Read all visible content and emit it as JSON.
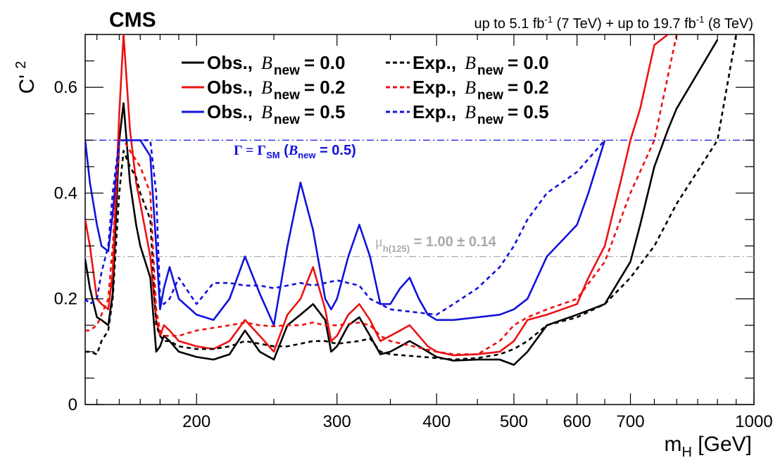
{
  "header": {
    "experiment": "CMS",
    "lumi_a": "up to 5.1 fb",
    "lumi_a_sup": "-1",
    "lumi_a_energy": " (7 TeV) + up to 19.7 fb",
    "lumi_b_sup": "-1",
    "lumi_b_energy": " (8 TeV)"
  },
  "legend": {
    "obs": "Obs.,",
    "exp": "Exp.,",
    "bnew_symbol": "B",
    "bnew_sub": "new",
    "entries": [
      {
        "kind": "obs",
        "value": "= 0.0",
        "color": "#000000"
      },
      {
        "kind": "obs",
        "value": "= 0.2",
        "color": "#ee1111"
      },
      {
        "kind": "obs",
        "value": "= 0.5",
        "color": "#1111dd"
      },
      {
        "kind": "exp",
        "value": "= 0.0",
        "color": "#000000"
      },
      {
        "kind": "exp",
        "value": "= 0.2",
        "color": "#ee1111"
      },
      {
        "kind": "exp",
        "value": "= 0.5",
        "color": "#1111dd"
      }
    ]
  },
  "annotations": {
    "gamma_label_main": "Γ = Γ",
    "gamma_label_sub": "SM",
    "gamma_label_paren_open": " (",
    "gamma_label_b": "B",
    "gamma_label_bsub": "new",
    "gamma_label_tail": " = 0.5)",
    "mu_label_main": "μ",
    "mu_label_sub": "h(125)",
    "mu_label_tail": " = 1.00 ± 0.14"
  },
  "chart_data": {
    "type": "line",
    "xscale": "log",
    "xlim": [
      145,
      1000
    ],
    "ylim": [
      0,
      0.7
    ],
    "xlabel": "m",
    "xlabel_sub": "H",
    "xlabel_unit": " [GeV]",
    "ylabel": "C' ",
    "ylabel_sup": "2",
    "xticks": [
      200,
      300,
      400,
      500,
      600,
      700,
      1000
    ],
    "xtick_labels": [
      "200",
      "300",
      "400",
      "500",
      "600",
      "700",
      "1000"
    ],
    "yticks": [
      0,
      0.2,
      0.4,
      0.6
    ],
    "ytick_labels": [
      "0",
      "0.2",
      "0.4",
      "0.6"
    ],
    "reference_lines": [
      {
        "y": 0.5,
        "color": "#1111dd",
        "style": "dashdot"
      },
      {
        "y": 0.28,
        "color": "#aaaaaa",
        "style": "dashdot"
      }
    ],
    "series": [
      {
        "name": "Obs., B_new = 0.0",
        "color": "#000000",
        "style": "solid",
        "x": [
          145,
          147,
          150,
          152,
          155,
          157,
          160,
          162,
          165,
          168,
          170,
          175,
          178,
          180,
          182,
          185,
          190,
          200,
          210,
          220,
          230,
          240,
          250,
          260,
          270,
          280,
          290,
          295,
          300,
          310,
          320,
          330,
          340,
          350,
          360,
          370,
          380,
          390,
          400,
          420,
          450,
          480,
          500,
          520,
          550,
          600,
          650,
          700,
          720,
          750,
          780,
          800,
          900
        ],
        "y": [
          0.275,
          0.22,
          0.165,
          0.16,
          0.15,
          0.21,
          0.5,
          0.57,
          0.42,
          0.34,
          0.3,
          0.24,
          0.1,
          0.11,
          0.13,
          0.12,
          0.1,
          0.09,
          0.085,
          0.095,
          0.14,
          0.1,
          0.085,
          0.15,
          0.17,
          0.19,
          0.16,
          0.1,
          0.11,
          0.15,
          0.165,
          0.13,
          0.095,
          0.1,
          0.11,
          0.12,
          0.11,
          0.1,
          0.09,
          0.083,
          0.085,
          0.085,
          0.075,
          0.1,
          0.15,
          0.17,
          0.19,
          0.27,
          0.34,
          0.45,
          0.52,
          0.56,
          0.69
        ]
      },
      {
        "name": "Obs., B_new = 0.2",
        "color": "#ee1111",
        "style": "solid",
        "x": [
          145,
          147,
          150,
          152,
          155,
          157,
          160,
          162,
          165,
          168,
          170,
          175,
          178,
          180,
          182,
          185,
          190,
          200,
          210,
          220,
          230,
          240,
          250,
          260,
          270,
          280,
          290,
          295,
          300,
          310,
          320,
          330,
          340,
          350,
          360,
          370,
          380,
          390,
          400,
          420,
          450,
          480,
          500,
          520,
          550,
          600,
          620,
          650,
          680,
          700,
          720,
          750,
          780
        ],
        "y": [
          0.35,
          0.3,
          0.2,
          0.19,
          0.18,
          0.25,
          0.55,
          0.7,
          0.52,
          0.42,
          0.38,
          0.28,
          0.16,
          0.13,
          0.15,
          0.14,
          0.12,
          0.11,
          0.105,
          0.12,
          0.16,
          0.13,
          0.1,
          0.17,
          0.2,
          0.26,
          0.18,
          0.12,
          0.13,
          0.17,
          0.19,
          0.16,
          0.12,
          0.13,
          0.14,
          0.15,
          0.13,
          0.11,
          0.1,
          0.093,
          0.095,
          0.1,
          0.12,
          0.16,
          0.17,
          0.19,
          0.24,
          0.3,
          0.42,
          0.5,
          0.56,
          0.68,
          0.7
        ]
      },
      {
        "name": "Obs., B_new = 0.5",
        "color": "#1111dd",
        "style": "solid",
        "x": [
          145,
          147,
          150,
          152,
          155,
          157,
          160,
          165,
          170,
          175,
          178,
          180,
          182,
          185,
          190,
          200,
          210,
          220,
          230,
          240,
          250,
          260,
          270,
          280,
          290,
          295,
          300,
          310,
          320,
          330,
          340,
          350,
          360,
          370,
          380,
          390,
          400,
          420,
          450,
          480,
          500,
          520,
          550,
          600,
          620,
          650
        ],
        "y": [
          0.5,
          0.42,
          0.34,
          0.3,
          0.29,
          0.36,
          0.5,
          0.5,
          0.5,
          0.47,
          0.3,
          0.18,
          0.22,
          0.26,
          0.2,
          0.17,
          0.16,
          0.2,
          0.28,
          0.21,
          0.15,
          0.3,
          0.42,
          0.33,
          0.2,
          0.18,
          0.2,
          0.28,
          0.34,
          0.28,
          0.19,
          0.19,
          0.22,
          0.24,
          0.2,
          0.17,
          0.16,
          0.16,
          0.165,
          0.17,
          0.18,
          0.2,
          0.28,
          0.34,
          0.4,
          0.5
        ]
      },
      {
        "name": "Exp., B_new = 0.0",
        "color": "#000000",
        "style": "dashed",
        "x": [
          145,
          147,
          150,
          152,
          155,
          157,
          160,
          162,
          165,
          168,
          170,
          175,
          178,
          180,
          182,
          185,
          190,
          200,
          210,
          220,
          230,
          240,
          250,
          260,
          270,
          280,
          290,
          300,
          320,
          330,
          340,
          350,
          400,
          420,
          450,
          480,
          500,
          520,
          550,
          600,
          650,
          700,
          750,
          800,
          900,
          950
        ],
        "y": [
          0.1,
          0.1,
          0.095,
          0.12,
          0.14,
          0.2,
          0.4,
          0.48,
          0.45,
          0.43,
          0.4,
          0.35,
          0.15,
          0.13,
          0.12,
          0.12,
          0.11,
          0.105,
          0.105,
          0.11,
          0.12,
          0.115,
          0.11,
          0.11,
          0.115,
          0.12,
          0.12,
          0.115,
          0.12,
          0.125,
          0.1,
          0.095,
          0.088,
          0.085,
          0.088,
          0.095,
          0.105,
          0.12,
          0.15,
          0.165,
          0.19,
          0.24,
          0.3,
          0.38,
          0.5,
          0.7
        ]
      },
      {
        "name": "Exp., B_new = 0.2",
        "color": "#ee1111",
        "style": "dashed",
        "x": [
          145,
          147,
          150,
          152,
          155,
          157,
          160,
          162,
          165,
          170,
          175,
          178,
          180,
          182,
          185,
          190,
          200,
          210,
          220,
          230,
          240,
          250,
          260,
          270,
          280,
          290,
          300,
          320,
          330,
          340,
          350,
          400,
          420,
          450,
          480,
          500,
          520,
          550,
          600,
          650,
          700,
          750,
          800
        ],
        "y": [
          0.14,
          0.14,
          0.15,
          0.17,
          0.2,
          0.3,
          0.5,
          0.5,
          0.48,
          0.45,
          0.4,
          0.18,
          0.14,
          0.13,
          0.13,
          0.13,
          0.14,
          0.145,
          0.15,
          0.155,
          0.15,
          0.148,
          0.15,
          0.15,
          0.155,
          0.15,
          0.15,
          0.155,
          0.15,
          0.13,
          0.12,
          0.1,
          0.095,
          0.095,
          0.12,
          0.15,
          0.165,
          0.18,
          0.2,
          0.27,
          0.4,
          0.5,
          0.7
        ]
      },
      {
        "name": "Exp., B_new = 0.5",
        "color": "#1111dd",
        "style": "dashed",
        "x": [
          145,
          147,
          150,
          152,
          155,
          157,
          160,
          162,
          165,
          170,
          172,
          175,
          178,
          180,
          182,
          185,
          190,
          200,
          210,
          220,
          230,
          240,
          250,
          260,
          270,
          280,
          290,
          300,
          320,
          330,
          340,
          350,
          400,
          420,
          450,
          480,
          500,
          520,
          550,
          600,
          650
        ],
        "y": [
          0.2,
          0.19,
          0.2,
          0.25,
          0.3,
          0.4,
          0.5,
          0.5,
          0.5,
          0.5,
          0.5,
          0.5,
          0.4,
          0.2,
          0.19,
          0.2,
          0.24,
          0.19,
          0.23,
          0.23,
          0.225,
          0.225,
          0.22,
          0.225,
          0.23,
          0.225,
          0.23,
          0.235,
          0.225,
          0.2,
          0.19,
          0.18,
          0.17,
          0.19,
          0.22,
          0.26,
          0.3,
          0.35,
          0.4,
          0.44,
          0.5
        ]
      }
    ]
  }
}
